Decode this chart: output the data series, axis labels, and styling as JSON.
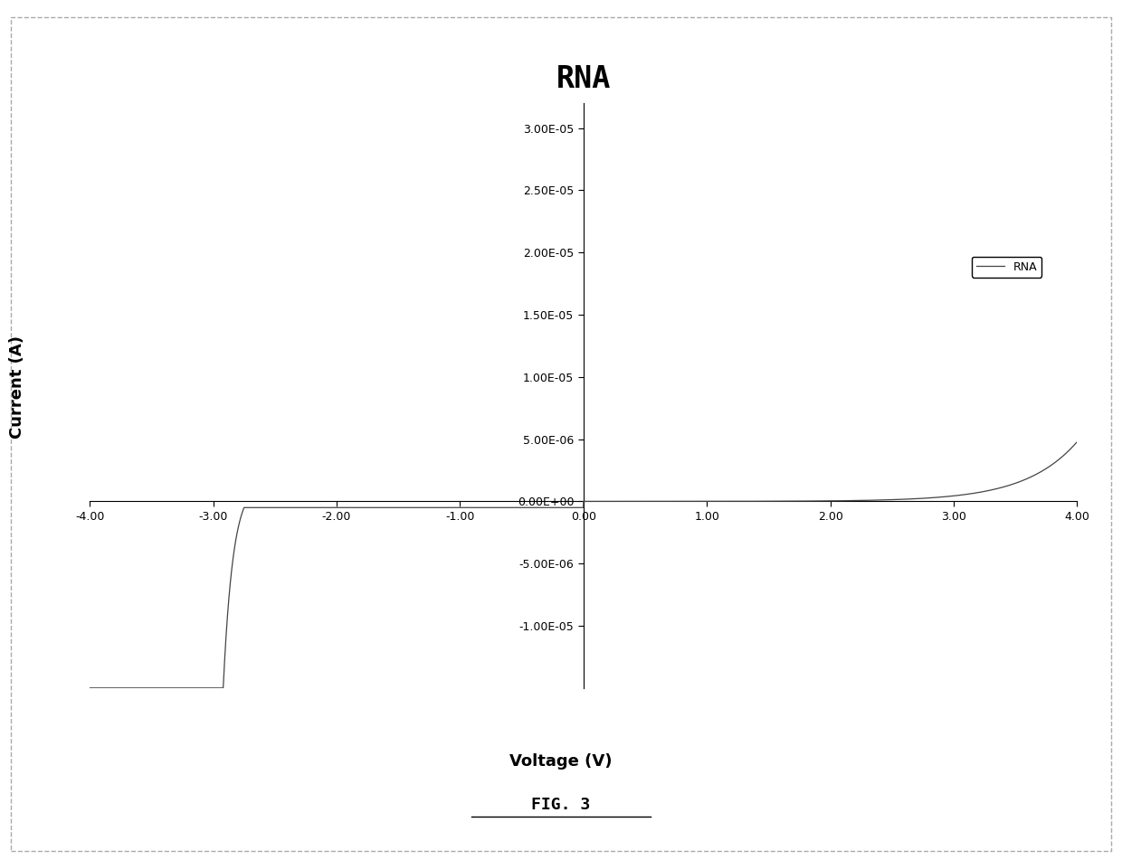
{
  "title": "RNA",
  "xlabel": "Voltage (V)",
  "ylabel": "Current (A)",
  "legend_label": "RNA",
  "xlim": [
    -4.0,
    4.0
  ],
  "ylim": [
    -1.5e-05,
    3.2e-05
  ],
  "xticks": [
    -4.0,
    -3.0,
    -2.0,
    -1.0,
    0.0,
    1.0,
    2.0,
    3.0,
    4.0
  ],
  "yticks": [
    -1e-05,
    -5e-06,
    0.0,
    5e-06,
    1e-05,
    1.5e-05,
    2e-05,
    2.5e-05,
    3e-05
  ],
  "ytick_labels": [
    "-1.00E-05",
    "-5.00E-06",
    "0.00E+00",
    "5.00E-06",
    "1.00E-05",
    "1.50E-05",
    "2.00E-05",
    "2.50E-05",
    "3.00E-05"
  ],
  "xtick_labels": [
    "-4.00",
    "-3.00",
    "-2.00",
    "-1.00",
    "0.00",
    "1.00",
    "2.00",
    "3.00",
    "4.00"
  ],
  "line_color": "#444444",
  "background_color": "#ffffff",
  "title_fontsize": 24,
  "axis_label_fontsize": 13,
  "tick_fontsize": 9,
  "legend_fontsize": 9,
  "fig_caption": "FIG. 3",
  "I0": 3.5e-10,
  "Vt_fwd": 0.42,
  "I_sat_neg": -5e-07,
  "v_breakdown": -2.75,
  "breakdown_scale": 0.08,
  "breakdown_amplitude": 2e-06
}
